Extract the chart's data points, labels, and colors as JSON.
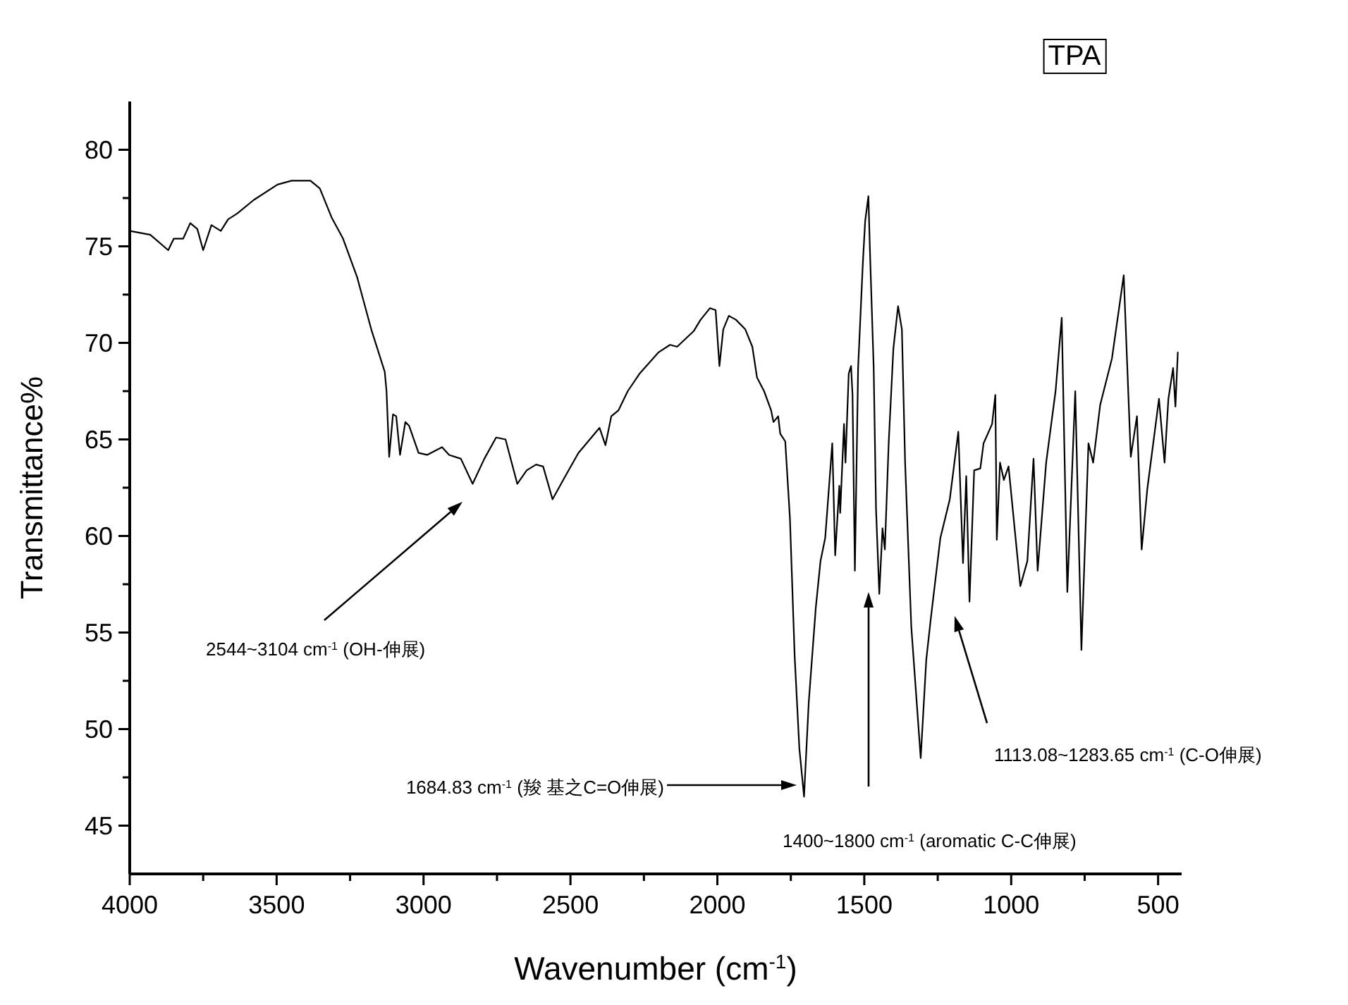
{
  "chart_data": {
    "type": "line",
    "title": "TPA",
    "xlabel": "Wavenumber (cm$^{-1}$)",
    "ylabel": "Transmittance%",
    "color": "#000000",
    "x": [
      4000,
      3930,
      3869,
      3850,
      3818,
      3794,
      3770,
      3750,
      3722,
      3690,
      3665,
      3634,
      3578,
      3497,
      3449,
      3385,
      3353,
      3313,
      3274,
      3226,
      3178,
      3132,
      3126,
      3117,
      3104,
      3093,
      3080,
      3062,
      3049,
      3017,
      2988,
      2937,
      2913,
      2873,
      2833,
      2793,
      2753,
      2721,
      2681,
      2649,
      2617,
      2593,
      2561,
      2521,
      2473,
      2401,
      2381,
      2361,
      2337,
      2305,
      2265,
      2201,
      2161,
      2137,
      2081,
      2057,
      2025,
      2006,
      1993,
      1980,
      1961,
      1937,
      1905,
      1881,
      1865,
      1841,
      1817,
      1809,
      1793,
      1786,
      1769,
      1753,
      1737,
      1721,
      1705,
      1689,
      1665,
      1649,
      1633,
      1609,
      1599,
      1585,
      1582,
      1569,
      1564,
      1553,
      1545,
      1540,
      1532,
      1521,
      1513,
      1505,
      1497,
      1486,
      1481,
      1468,
      1460,
      1449,
      1438,
      1430,
      1417,
      1401,
      1385,
      1372,
      1361,
      1340,
      1308,
      1289,
      1273,
      1241,
      1209,
      1180,
      1164,
      1153,
      1142,
      1126,
      1105,
      1094,
      1065,
      1054,
      1049,
      1038,
      1025,
      1009,
      969,
      945,
      924,
      910,
      881,
      849,
      828,
      809,
      782,
      761,
      737,
      721,
      697,
      657,
      617,
      593,
      572,
      556,
      537,
      497,
      478,
      465,
      449,
      441,
      433
    ],
    "values": [
      75.8,
      75.6,
      74.8,
      75.4,
      75.4,
      76.2,
      75.9,
      74.8,
      76.1,
      75.8,
      76.4,
      76.7,
      77.4,
      78.2,
      78.4,
      78.4,
      78.0,
      76.5,
      75.4,
      73.4,
      70.7,
      68.5,
      67.5,
      64.1,
      66.3,
      66.2,
      64.2,
      65.9,
      65.7,
      64.3,
      64.2,
      64.6,
      64.2,
      64.0,
      62.7,
      64.0,
      65.1,
      65.0,
      62.7,
      63.4,
      63.7,
      63.6,
      61.9,
      63.0,
      64.3,
      65.6,
      64.7,
      66.2,
      66.5,
      67.5,
      68.4,
      69.5,
      69.9,
      69.8,
      70.6,
      71.2,
      71.8,
      71.7,
      68.8,
      70.7,
      71.4,
      71.2,
      70.7,
      69.8,
      68.2,
      67.5,
      66.5,
      65.9,
      66.2,
      65.3,
      64.9,
      60.9,
      53.8,
      49.0,
      46.5,
      51.4,
      56.3,
      58.7,
      59.9,
      64.8,
      59.0,
      62.6,
      61.2,
      65.8,
      63.8,
      68.4,
      68.8,
      67.3,
      58.2,
      68.7,
      71.4,
      74.1,
      76.3,
      77.6,
      74.9,
      68.7,
      61.4,
      57.0,
      60.4,
      59.3,
      64.8,
      69.7,
      71.9,
      70.7,
      63.8,
      55.3,
      48.5,
      53.6,
      55.8,
      59.9,
      61.9,
      65.4,
      58.6,
      63.1,
      56.6,
      63.4,
      63.5,
      64.8,
      65.8,
      67.3,
      59.8,
      63.8,
      62.9,
      63.6,
      57.4,
      58.7,
      64.0,
      58.2,
      63.8,
      67.5,
      71.3,
      57.1,
      67.5,
      54.1,
      64.8,
      63.8,
      66.8,
      69.2,
      73.5,
      64.1,
      66.2,
      59.3,
      62.4,
      67.1,
      63.8,
      67.1,
      68.7,
      66.7,
      69.5
    ],
    "xlim": [
      4000,
      420
    ],
    "ylim": [
      42.5,
      82.5
    ],
    "xticks": [
      4000,
      {
        "value": 3750,
        "label": null
      },
      3500,
      {
        "value": 3250,
        "label": null
      },
      3000,
      {
        "value": 2750,
        "label": null
      },
      2500,
      {
        "value": 2250,
        "label": null
      },
      2000,
      {
        "value": 1750,
        "label": null
      },
      1500,
      {
        "value": 1250,
        "label": null
      },
      1000,
      {
        "value": 750,
        "label": null
      },
      500
    ],
    "yticks": [
      45,
      {
        "value": 47.5,
        "label": null
      },
      50,
      {
        "value": 52.5,
        "label": null
      },
      55,
      {
        "value": 57.5,
        "label": null
      },
      60,
      {
        "value": 62.5,
        "label": null
      },
      65,
      {
        "value": 67.5,
        "label": null
      },
      70,
      {
        "value": 72.5,
        "label": null
      },
      75,
      {
        "value": 77.5,
        "label": null
      },
      80
    ],
    "annotations": [
      "2544~3104 cm$^{-1}$ (OH-伸展)",
      "1684.83 cm$^{-1}$ (羧 基之C=O伸展)",
      "1400~1800 cm$^{-1}$ (aromatic C-C伸展)",
      "1113.08~1283.65 cm$^{-1}$ (C-O伸展)"
    ]
  }
}
